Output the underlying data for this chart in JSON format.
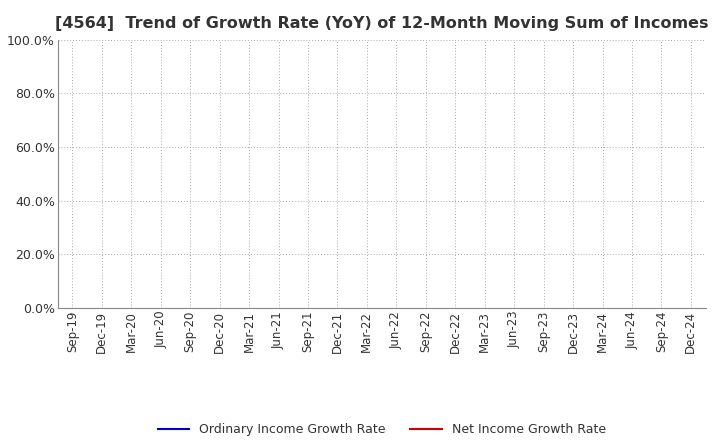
{
  "title": "[4564]  Trend of Growth Rate (YoY) of 12-Month Moving Sum of Incomes",
  "title_color": "#333333",
  "title_fontsize": 11.5,
  "ylim": [
    0.0,
    1.0
  ],
  "yticks": [
    0.0,
    0.2,
    0.4,
    0.6,
    0.8,
    1.0
  ],
  "x_labels": [
    "Sep-19",
    "Dec-19",
    "Mar-20",
    "Jun-20",
    "Sep-20",
    "Dec-20",
    "Mar-21",
    "Jun-21",
    "Sep-21",
    "Dec-21",
    "Mar-22",
    "Jun-22",
    "Sep-22",
    "Dec-22",
    "Mar-23",
    "Jun-23",
    "Sep-23",
    "Dec-23",
    "Mar-24",
    "Jun-24",
    "Sep-24",
    "Dec-24"
  ],
  "ordinary_income_color": "#0000cc",
  "net_income_color": "#cc0000",
  "legend_labels": [
    "Ordinary Income Growth Rate",
    "Net Income Growth Rate"
  ],
  "grid_color": "#aaaaaa",
  "background_color": "#ffffff",
  "line_width": 1.5,
  "tick_fontsize": 8.5,
  "ytick_fontsize": 9
}
